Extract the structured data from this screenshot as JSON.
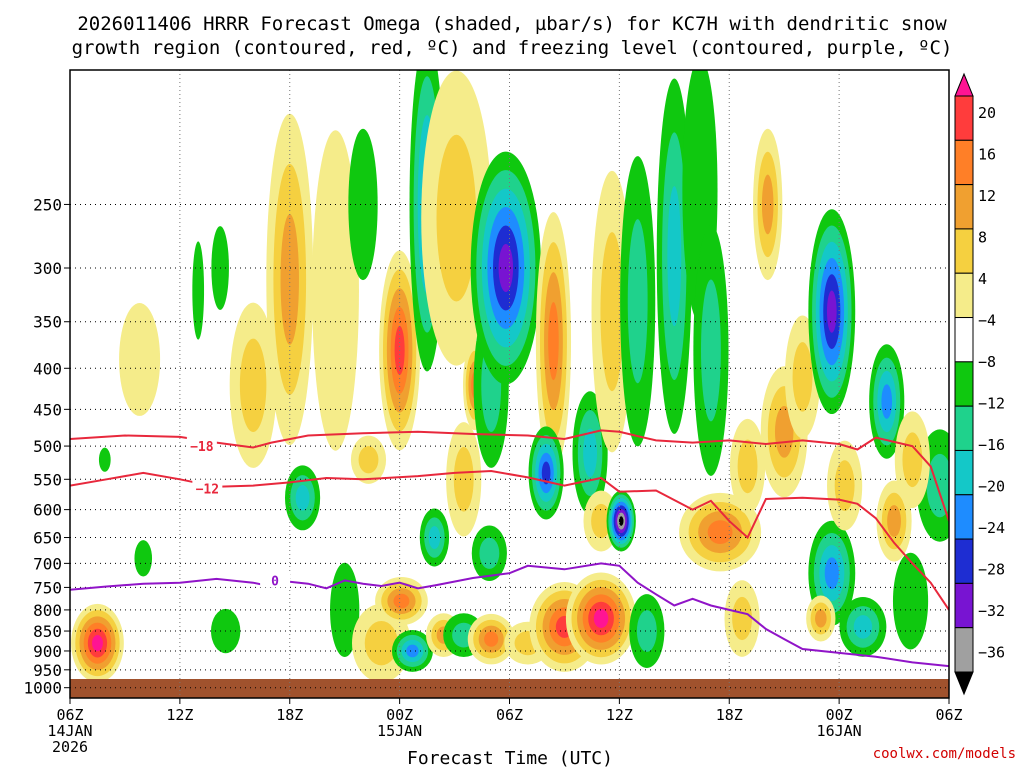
{
  "title_line1": "2026011406 HRRR Forecast Omega (shaded, µbar/s) for KC7H with dendritic snow",
  "title_line2": "growth region (contoured, red, ºC) and freezing level (contoured, purple, ºC)",
  "chart_data": {
    "type": "heatmap",
    "title": "2026011406 HRRR Forecast Omega (shaded, µbar/s) for KC7H with dendritic snow growth region (contoured, red, ºC) and freezing level (contoured, purple, ºC)",
    "xlabel": "Forecast Time (UTC)",
    "ylabel": "",
    "x_range_hours": [
      0,
      48
    ],
    "y_range_hPa": [
      1030,
      170
    ],
    "y_scale": "log",
    "grid": true,
    "x_ticks": [
      {
        "hour": 0,
        "label": "06Z",
        "sub1": "14JAN",
        "sub2": "2026"
      },
      {
        "hour": 6,
        "label": "12Z",
        "sub1": "",
        "sub2": ""
      },
      {
        "hour": 12,
        "label": "18Z",
        "sub1": "",
        "sub2": ""
      },
      {
        "hour": 18,
        "label": "00Z",
        "sub1": "15JAN",
        "sub2": ""
      },
      {
        "hour": 24,
        "label": "06Z",
        "sub1": "",
        "sub2": ""
      },
      {
        "hour": 30,
        "label": "12Z",
        "sub1": "",
        "sub2": ""
      },
      {
        "hour": 36,
        "label": "18Z",
        "sub1": "",
        "sub2": ""
      },
      {
        "hour": 42,
        "label": "00Z",
        "sub1": "16JAN",
        "sub2": ""
      },
      {
        "hour": 48,
        "label": "06Z",
        "sub1": "",
        "sub2": ""
      }
    ],
    "y_ticks": [
      250,
      300,
      350,
      400,
      450,
      500,
      550,
      600,
      650,
      700,
      750,
      800,
      850,
      900,
      950,
      1000
    ],
    "colorbar": {
      "labels": [
        "20",
        "16",
        "12",
        "8",
        "4",
        "−4",
        "−8",
        "−12",
        "−16",
        "−20",
        "−24",
        "−28",
        "−32",
        "−36"
      ],
      "colors": [
        "#ff1493",
        "#ff3c3c",
        "#ff7f27",
        "#f0a030",
        "#f5d040",
        "#f5ec8a",
        "#ffffff",
        "#0fc80f",
        "#1fd28c",
        "#14c8c8",
        "#1e8cff",
        "#1e2dd2",
        "#7814d2",
        "#a0a0a0",
        "#000000"
      ]
    },
    "omega_cells": [
      {
        "h": 1.5,
        "p": 880,
        "w": 0.9,
        "dp": 110,
        "v": 20
      },
      {
        "h": 3.8,
        "p": 390,
        "w": 0.7,
        "dp": 70,
        "v": 5
      },
      {
        "h": 1.9,
        "p": 520,
        "w": 0.2,
        "dp": 20,
        "v": -5
      },
      {
        "h": 4.0,
        "p": 690,
        "w": 0.3,
        "dp": 40,
        "v": -6
      },
      {
        "h": 7.0,
        "p": 320,
        "w": 0.2,
        "dp": 50,
        "v": -5
      },
      {
        "h": 8.2,
        "p": 300,
        "w": 0.3,
        "dp": 40,
        "v": -5
      },
      {
        "h": 8.5,
        "p": 850,
        "w": 0.5,
        "dp": 60,
        "v": -7
      },
      {
        "h": 10.0,
        "p": 420,
        "w": 0.8,
        "dp": 110,
        "v": 6
      },
      {
        "h": 12.0,
        "p": 310,
        "w": 0.8,
        "dp": 160,
        "v": 8
      },
      {
        "h": 12.7,
        "p": 580,
        "w": 0.6,
        "dp": 60,
        "v": -12
      },
      {
        "h": 14.5,
        "p": 320,
        "w": 0.8,
        "dp": 160,
        "v": 5
      },
      {
        "h": 16.0,
        "p": 250,
        "w": 0.5,
        "dp": 60,
        "v": -4
      },
      {
        "h": 15.0,
        "p": 800,
        "w": 0.5,
        "dp": 120,
        "v": -6
      },
      {
        "h": 17.0,
        "p": 880,
        "w": 1.0,
        "dp": 110,
        "v": 6
      },
      {
        "h": 18.0,
        "p": 380,
        "w": 0.7,
        "dp": 120,
        "v": 18
      },
      {
        "h": 18.1,
        "p": 780,
        "w": 0.9,
        "dp": 60,
        "v": 14
      },
      {
        "h": 16.3,
        "p": 520,
        "w": 0.6,
        "dp": 40,
        "v": 6
      },
      {
        "h": 19.5,
        "p": 250,
        "w": 0.6,
        "dp": 130,
        "v": -16
      },
      {
        "h": 19.9,
        "p": 650,
        "w": 0.5,
        "dp": 60,
        "v": -14
      },
      {
        "h": 18.7,
        "p": 900,
        "w": 0.7,
        "dp": 60,
        "v": -16
      },
      {
        "h": 20.4,
        "p": 860,
        "w": 0.6,
        "dp": 60,
        "v": 8
      },
      {
        "h": 21.1,
        "p": 260,
        "w": 1.2,
        "dp": 120,
        "v": 6
      },
      {
        "h": 21.5,
        "p": 550,
        "w": 0.6,
        "dp": 100,
        "v": 6
      },
      {
        "h": 22.1,
        "p": 420,
        "w": 0.4,
        "dp": 60,
        "v": 12
      },
      {
        "h": 23.0,
        "p": 420,
        "w": 0.6,
        "dp": 110,
        "v": -8
      },
      {
        "h": 22.9,
        "p": 680,
        "w": 0.6,
        "dp": 60,
        "v": -10
      },
      {
        "h": 23.8,
        "p": 300,
        "w": 1.2,
        "dp": 110,
        "v": -24
      },
      {
        "h": 21.5,
        "p": 860,
        "w": 0.7,
        "dp": 60,
        "v": -8
      },
      {
        "h": 23.0,
        "p": 870,
        "w": 0.8,
        "dp": 70,
        "v": 12
      },
      {
        "h": 25.0,
        "p": 880,
        "w": 0.8,
        "dp": 60,
        "v": 6
      },
      {
        "h": 26.4,
        "p": 370,
        "w": 0.6,
        "dp": 150,
        "v": 12
      },
      {
        "h": 26.0,
        "p": 540,
        "w": 0.6,
        "dp": 80,
        "v": -22
      },
      {
        "h": 27.0,
        "p": 840,
        "w": 1.2,
        "dp": 120,
        "v": 16
      },
      {
        "h": 28.4,
        "p": 510,
        "w": 0.6,
        "dp": 100,
        "v": -12
      },
      {
        "h": 29.0,
        "p": 620,
        "w": 0.6,
        "dp": 60,
        "v": 6
      },
      {
        "h": 29.0,
        "p": 820,
        "w": 1.2,
        "dp": 120,
        "v": 20
      },
      {
        "h": 29.6,
        "p": 340,
        "w": 0.7,
        "dp": 150,
        "v": 6
      },
      {
        "h": 30.1,
        "p": 620,
        "w": 0.5,
        "dp": 60,
        "v": -36
      },
      {
        "h": 31.0,
        "p": 330,
        "w": 0.6,
        "dp": 150,
        "v": -8
      },
      {
        "h": 31.5,
        "p": 850,
        "w": 0.6,
        "dp": 100,
        "v": -8
      },
      {
        "h": 33.0,
        "p": 290,
        "w": 0.6,
        "dp": 160,
        "v": -14
      },
      {
        "h": 34.4,
        "p": 240,
        "w": 0.6,
        "dp": 100,
        "v": -6
      },
      {
        "h": 35.0,
        "p": 380,
        "w": 0.6,
        "dp": 150,
        "v": -8
      },
      {
        "h": 35.5,
        "p": 640,
        "w": 1.4,
        "dp": 80,
        "v": 12
      },
      {
        "h": 36.7,
        "p": 820,
        "w": 0.6,
        "dp": 100,
        "v": 6
      },
      {
        "h": 37.0,
        "p": 530,
        "w": 0.6,
        "dp": 80,
        "v": 6
      },
      {
        "h": 38.1,
        "p": 250,
        "w": 0.5,
        "dp": 60,
        "v": 10
      },
      {
        "h": 39.0,
        "p": 480,
        "w": 0.8,
        "dp": 100,
        "v": 10
      },
      {
        "h": 40.0,
        "p": 410,
        "w": 0.6,
        "dp": 80,
        "v": 6
      },
      {
        "h": 41.6,
        "p": 340,
        "w": 0.8,
        "dp": 110,
        "v": -26
      },
      {
        "h": 41.6,
        "p": 720,
        "w": 0.8,
        "dp": 120,
        "v": -18
      },
      {
        "h": 41.0,
        "p": 820,
        "w": 0.5,
        "dp": 60,
        "v": 10
      },
      {
        "h": 42.3,
        "p": 560,
        "w": 0.6,
        "dp": 80,
        "v": 6
      },
      {
        "h": 43.3,
        "p": 840,
        "w": 0.8,
        "dp": 80,
        "v": -14
      },
      {
        "h": 44.6,
        "p": 440,
        "w": 0.6,
        "dp": 80,
        "v": -18
      },
      {
        "h": 45.0,
        "p": 620,
        "w": 0.6,
        "dp": 80,
        "v": 10
      },
      {
        "h": 45.9,
        "p": 780,
        "w": 0.6,
        "dp": 120,
        "v": -6
      },
      {
        "h": 47.5,
        "p": 560,
        "w": 0.8,
        "dp": 100,
        "v": -8
      },
      {
        "h": 46.0,
        "p": 520,
        "w": 0.6,
        "dp": 80,
        "v": 6
      }
    ],
    "dendritic_contours": [
      {
        "label": "−18",
        "label_at": [
          7.2,
          500
        ],
        "points": [
          [
            0,
            490
          ],
          [
            3,
            485
          ],
          [
            6,
            487
          ],
          [
            8,
            495
          ],
          [
            10,
            502
          ],
          [
            11,
            495
          ],
          [
            13,
            485
          ],
          [
            16,
            482
          ],
          [
            19,
            480
          ],
          [
            22,
            483
          ],
          [
            25,
            485
          ],
          [
            27,
            490
          ],
          [
            29,
            478
          ],
          [
            30,
            480
          ],
          [
            32,
            492
          ],
          [
            34,
            495
          ],
          [
            36,
            492
          ],
          [
            38,
            497
          ],
          [
            40,
            492
          ],
          [
            42,
            497
          ],
          [
            43,
            505
          ],
          [
            44,
            488
          ],
          [
            46,
            500
          ],
          [
            47,
            530
          ],
          [
            48,
            620
          ]
        ]
      },
      {
        "label": "−12",
        "label_at": [
          7.5,
          565
        ],
        "points": [
          [
            0,
            560
          ],
          [
            2,
            550
          ],
          [
            4,
            540
          ],
          [
            6,
            550
          ],
          [
            8,
            562
          ],
          [
            10,
            560
          ],
          [
            12,
            555
          ],
          [
            14,
            548
          ],
          [
            16,
            550
          ],
          [
            19,
            545
          ],
          [
            21,
            540
          ],
          [
            23,
            537
          ],
          [
            25,
            547
          ],
          [
            27,
            560
          ],
          [
            29,
            548
          ],
          [
            30,
            570
          ],
          [
            32,
            568
          ],
          [
            34,
            600
          ],
          [
            35,
            585
          ],
          [
            36,
            620
          ],
          [
            37,
            650
          ],
          [
            38,
            582
          ],
          [
            40,
            580
          ],
          [
            42,
            583
          ],
          [
            43,
            590
          ],
          [
            44,
            615
          ],
          [
            45,
            660
          ],
          [
            46,
            700
          ],
          [
            47,
            740
          ],
          [
            48,
            800
          ]
        ]
      }
    ],
    "freezing_level": {
      "label": "0",
      "label_at": [
        11.2,
        735
      ],
      "points": [
        [
          0,
          755
        ],
        [
          2,
          748
        ],
        [
          4,
          742
        ],
        [
          6,
          740
        ],
        [
          8,
          732
        ],
        [
          10,
          740
        ],
        [
          11,
          748
        ],
        [
          12,
          738
        ],
        [
          13,
          742
        ],
        [
          14,
          752
        ],
        [
          15,
          735
        ],
        [
          16,
          742
        ],
        [
          17,
          747
        ],
        [
          18,
          740
        ],
        [
          19,
          752
        ],
        [
          20,
          745
        ],
        [
          22,
          730
        ],
        [
          24,
          720
        ],
        [
          25,
          705
        ],
        [
          27,
          712
        ],
        [
          29,
          700
        ],
        [
          30,
          705
        ],
        [
          31,
          740
        ],
        [
          32,
          765
        ],
        [
          33,
          790
        ],
        [
          34,
          775
        ],
        [
          35,
          790
        ],
        [
          36,
          800
        ],
        [
          37,
          810
        ],
        [
          38,
          845
        ],
        [
          39,
          870
        ],
        [
          40,
          895
        ],
        [
          42,
          905
        ],
        [
          44,
          915
        ],
        [
          46,
          930
        ],
        [
          48,
          940
        ]
      ]
    }
  },
  "credit": "coolwx.com/models"
}
